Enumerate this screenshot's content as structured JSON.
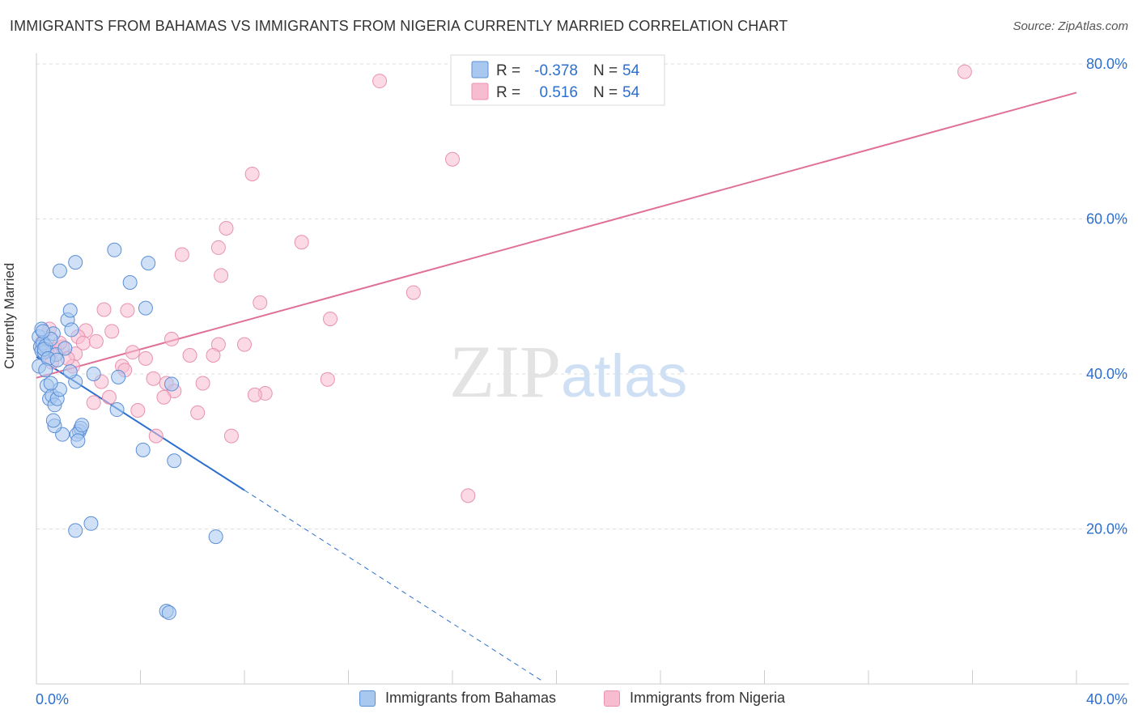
{
  "chart_data": {
    "type": "scatter",
    "title": "IMMIGRANTS FROM BAHAMAS VS IMMIGRANTS FROM NIGERIA CURRENTLY MARRIED CORRELATION CHART",
    "source": "Source: ZipAtlas.com",
    "ylabel": "Currently Married",
    "xlim": [
      0,
      40
    ],
    "ylim": [
      0,
      80
    ],
    "x_tick_labels": [
      "0.0%",
      "40.0%"
    ],
    "y_ticks": [
      {
        "value": 20,
        "label": "20.0%"
      },
      {
        "value": 40,
        "label": "40.0%"
      },
      {
        "value": 60,
        "label": "60.0%"
      },
      {
        "value": 80,
        "label": "80.0%"
      }
    ],
    "grid": true,
    "watermark": "ZIPatlas",
    "colors": {
      "bahamas_fill": "#a9c8f0",
      "bahamas_stroke": "#5b8fd6",
      "bahamas_line": "#2c6fcf",
      "nigeria_fill": "#f7bcd0",
      "nigeria_stroke": "#e892b0",
      "nigeria_line": "#e07099",
      "value_text": "#2c6fcf"
    },
    "legend_stats": [
      {
        "r_label": "R =",
        "r_value": "-0.378",
        "n_label": "N =",
        "n_value": "54"
      },
      {
        "r_label": "R =",
        "r_value": "0.516",
        "n_label": "N =",
        "n_value": "54"
      }
    ],
    "series": [
      {
        "name": "Immigrants from Bahamas",
        "trend": {
          "x0": 0,
          "y0": 42.2,
          "x1": 8.0,
          "y1": 25.0,
          "dash_x1": 19.4,
          "dash_y1": 0.5
        },
        "points": [
          [
            0.1,
            44.8
          ],
          [
            0.15,
            43.5
          ],
          [
            0.2,
            43.0
          ],
          [
            0.25,
            44.0
          ],
          [
            0.3,
            42.8
          ],
          [
            0.35,
            43.6
          ],
          [
            0.1,
            41.0
          ],
          [
            0.2,
            45.8
          ],
          [
            0.4,
            38.5
          ],
          [
            0.5,
            36.8
          ],
          [
            0.6,
            37.2
          ],
          [
            0.7,
            36.0
          ],
          [
            0.8,
            36.8
          ],
          [
            0.9,
            38.0
          ],
          [
            0.55,
            38.8
          ],
          [
            0.75,
            42.5
          ],
          [
            0.65,
            45.2
          ],
          [
            1.1,
            43.3
          ],
          [
            1.2,
            47.0
          ],
          [
            1.3,
            48.2
          ],
          [
            1.35,
            45.7
          ],
          [
            1.5,
            39.0
          ],
          [
            1.65,
            32.6
          ],
          [
            1.7,
            33.0
          ],
          [
            1.55,
            32.2
          ],
          [
            1.0,
            32.2
          ],
          [
            0.7,
            33.3
          ],
          [
            0.65,
            34.0
          ],
          [
            1.6,
            31.4
          ],
          [
            1.75,
            33.4
          ],
          [
            0.9,
            53.3
          ],
          [
            1.5,
            54.4
          ],
          [
            3.0,
            56.0
          ],
          [
            3.6,
            51.8
          ],
          [
            4.3,
            54.3
          ],
          [
            4.2,
            48.5
          ],
          [
            2.2,
            40.0
          ],
          [
            3.15,
            39.6
          ],
          [
            4.1,
            30.2
          ],
          [
            5.2,
            38.7
          ],
          [
            3.1,
            35.4
          ],
          [
            5.3,
            28.8
          ],
          [
            1.5,
            19.8
          ],
          [
            2.1,
            20.7
          ],
          [
            6.9,
            19.0
          ],
          [
            5.0,
            9.4
          ],
          [
            5.1,
            9.2
          ],
          [
            0.3,
            43.2
          ],
          [
            0.45,
            42.0
          ],
          [
            0.55,
            44.5
          ],
          [
            0.35,
            40.5
          ],
          [
            0.25,
            45.5
          ],
          [
            1.3,
            40.3
          ],
          [
            0.8,
            41.8
          ]
        ]
      },
      {
        "name": "Immigrants from Nigeria",
        "trend": {
          "x0": 0,
          "y0": 39.5,
          "x1": 40.0,
          "y1": 76.3
        },
        "points": [
          [
            13.2,
            77.8
          ],
          [
            35.7,
            79.0
          ],
          [
            16.0,
            67.7
          ],
          [
            8.3,
            65.8
          ],
          [
            7.3,
            58.8
          ],
          [
            10.2,
            57.0
          ],
          [
            7.0,
            56.3
          ],
          [
            5.6,
            55.4
          ],
          [
            7.1,
            52.7
          ],
          [
            14.5,
            50.5
          ],
          [
            8.6,
            49.2
          ],
          [
            11.3,
            47.1
          ],
          [
            2.6,
            48.3
          ],
          [
            3.5,
            48.2
          ],
          [
            2.9,
            45.5
          ],
          [
            1.9,
            45.6
          ],
          [
            1.6,
            44.8
          ],
          [
            1.8,
            44.0
          ],
          [
            5.2,
            44.5
          ],
          [
            7.0,
            43.8
          ],
          [
            8.0,
            43.8
          ],
          [
            1.0,
            43.5
          ],
          [
            0.7,
            43.2
          ],
          [
            1.5,
            42.6
          ],
          [
            3.7,
            42.8
          ],
          [
            4.2,
            42.0
          ],
          [
            5.9,
            42.4
          ],
          [
            6.8,
            42.4
          ],
          [
            3.3,
            41.0
          ],
          [
            3.4,
            40.5
          ],
          [
            4.5,
            39.4
          ],
          [
            5.0,
            38.8
          ],
          [
            6.4,
            38.8
          ],
          [
            11.2,
            39.3
          ],
          [
            2.5,
            39.0
          ],
          [
            5.3,
            37.8
          ],
          [
            8.8,
            37.5
          ],
          [
            8.4,
            37.3
          ],
          [
            2.8,
            37.0
          ],
          [
            4.9,
            37.0
          ],
          [
            2.2,
            36.3
          ],
          [
            3.9,
            35.3
          ],
          [
            6.2,
            35.0
          ],
          [
            4.6,
            32.0
          ],
          [
            7.5,
            32.0
          ],
          [
            16.6,
            24.3
          ],
          [
            1.4,
            41.0
          ],
          [
            0.2,
            44.0
          ],
          [
            0.4,
            43.0
          ],
          [
            0.9,
            44.0
          ],
          [
            2.3,
            44.2
          ],
          [
            1.2,
            42.0
          ],
          [
            0.5,
            45.8
          ],
          [
            0.6,
            41.5
          ]
        ]
      }
    ]
  }
}
